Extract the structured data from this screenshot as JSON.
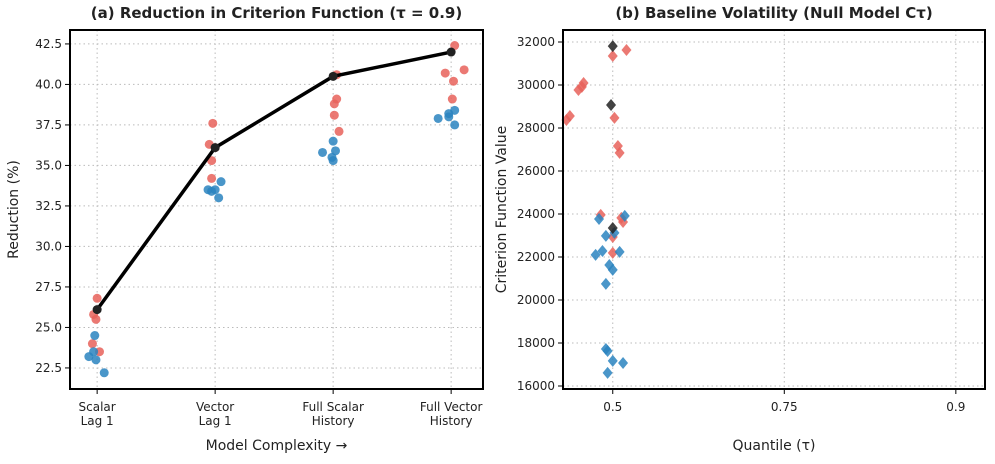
{
  "chart_data": [
    {
      "type": "scatter",
      "title": "(a) Reduction in Criterion Function (τ = 0.9)",
      "x_label": "Model Complexity →",
      "y_label": "Reduction (%)",
      "xlim": [
        -0.23,
        3.27
      ],
      "ylim": [
        21.2,
        43.36
      ],
      "xticks": [
        {
          "value": 0,
          "label": "Scalar\nLag 1"
        },
        {
          "value": 1,
          "label": "Vector\nLag 1"
        },
        {
          "value": 2,
          "label": "Full Scalar\nHistory"
        },
        {
          "value": 3,
          "label": "Full Vector\nHistory"
        }
      ],
      "yticks": [
        22.5,
        {
          "value": 25,
          "label": "25.0"
        },
        27.5,
        {
          "value": 30,
          "label": "30.0"
        },
        32.5,
        {
          "value": 35,
          "label": "35.0"
        },
        37.5,
        {
          "value": 40,
          "label": "40.0"
        },
        42.5
      ],
      "grid": true,
      "series": [
        {
          "color": "#e8625a",
          "marker": "circle",
          "x": [
            -0.03,
            0,
            -0.01,
            -0.04,
            0.02,
            0.98,
            0.95,
            0.97,
            0.97,
            1.0,
            2.03,
            2.03,
            2.01,
            2.01,
            2.05,
            3.03,
            2.95,
            3.02,
            3.01,
            3.11
          ],
          "values": [
            25.8,
            26.8,
            25.5,
            24.0,
            23.5,
            37.6,
            36.3,
            35.3,
            34.2,
            36.1,
            40.6,
            39.1,
            38.8,
            38.1,
            37.1,
            42.4,
            40.7,
            40.2,
            39.1,
            40.9
          ]
        },
        {
          "color": "#2a84bf",
          "marker": "circle",
          "x": [
            -0.02,
            -0.07,
            -0.01,
            0.06,
            -0.03,
            0.94,
            1.0,
            1.03,
            1.05,
            0.97,
            1.91,
            2.0,
            2.0,
            2.02,
            1.99,
            2.89,
            2.98,
            3.03,
            3.03,
            2.98
          ],
          "values": [
            24.5,
            23.2,
            23.0,
            22.2,
            23.5,
            33.5,
            33.5,
            33.0,
            34.0,
            33.4,
            35.8,
            36.5,
            35.3,
            35.9,
            35.5,
            37.9,
            38.0,
            38.4,
            37.5,
            38.2
          ]
        },
        {
          "color": "#000000",
          "marker": "line",
          "x": [
            0,
            1,
            2,
            3
          ],
          "values": [
            26.1,
            36.1,
            40.5,
            42.0
          ]
        }
      ]
    },
    {
      "type": "scatter",
      "title": "(b) Baseline Volatility (Null Model Cτ)",
      "x_label": "Quantile (τ)",
      "y_label": "Criterion Function Value",
      "xlim": [
        -0.29,
        2.17
      ],
      "ylim": [
        15860,
        32558
      ],
      "xticks": [
        {
          "value": 0,
          "label": "0.5"
        },
        {
          "value": 1,
          "label": "0.75"
        },
        {
          "value": 2,
          "label": "0.9"
        }
      ],
      "yticks": [
        16000,
        18000,
        20000,
        22000,
        24000,
        26000,
        28000,
        30000,
        32000
      ],
      "grid": true,
      "series": [
        {
          "color": "#e8625a",
          "marker": "diamond",
          "x": [
            -0.27,
            -0.25,
            0.01,
            0.03,
            0.04,
            -0.2,
            -0.18,
            -0.17,
            0,
            0.08,
            -0.07,
            0.05,
            0.06,
            0,
            0
          ],
          "values": [
            28370,
            28560,
            28470,
            27160,
            26840,
            29770,
            29910,
            30090,
            31350,
            31630,
            23960,
            23820,
            23630,
            22930,
            22190
          ]
        },
        {
          "color": "#2a84bf",
          "marker": "diamond",
          "x": [
            -0.1,
            -0.06,
            -0.02,
            0,
            -0.04,
            -0.08,
            -0.04,
            0.01,
            0.07,
            0.04,
            -0.04,
            -0.03,
            0,
            0.06,
            -0.03
          ],
          "values": [
            22100,
            22280,
            21630,
            21400,
            20750,
            23770,
            22980,
            23120,
            23910,
            22240,
            17720,
            17630,
            17170,
            17070,
            16610
          ]
        },
        {
          "color": "#222222",
          "marker": "diamond",
          "x": [
            -0.01,
            0,
            0
          ],
          "values": [
            29070,
            31810,
            23350
          ]
        }
      ]
    }
  ]
}
